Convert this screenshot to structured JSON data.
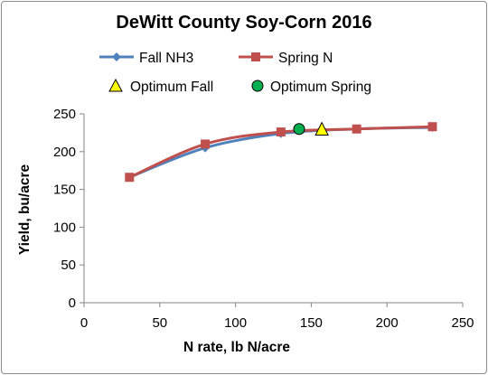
{
  "chart_data": {
    "type": "line",
    "title": "DeWitt County Soy-Corn 2016",
    "xlabel": "N rate, lb N/acre",
    "ylabel": "Yield, bu/acre",
    "xlim": [
      0,
      250
    ],
    "ylim": [
      0,
      250
    ],
    "xticks": [
      0,
      50,
      100,
      150,
      200,
      250
    ],
    "yticks": [
      0,
      50,
      100,
      150,
      200,
      250
    ],
    "grid": "none",
    "legend_position": "top",
    "series": [
      {
        "name": "Fall NH3",
        "color": "#4F81BD",
        "marker": "diamond",
        "x": [
          30,
          80,
          130,
          180,
          230
        ],
        "y": [
          166,
          205,
          224,
          230,
          232
        ]
      },
      {
        "name": "Spring N",
        "color": "#C0504D",
        "marker": "square",
        "x": [
          30,
          80,
          130,
          180,
          230
        ],
        "y": [
          166,
          210,
          226,
          230,
          233
        ]
      }
    ],
    "markers": [
      {
        "name": "Optimum Fall",
        "shape": "triangle",
        "color": "#FFFF00",
        "x": 157,
        "y": 229
      },
      {
        "name": "Optimum Spring",
        "shape": "circle",
        "color": "#00B050",
        "x": 142,
        "y": 230
      }
    ]
  }
}
